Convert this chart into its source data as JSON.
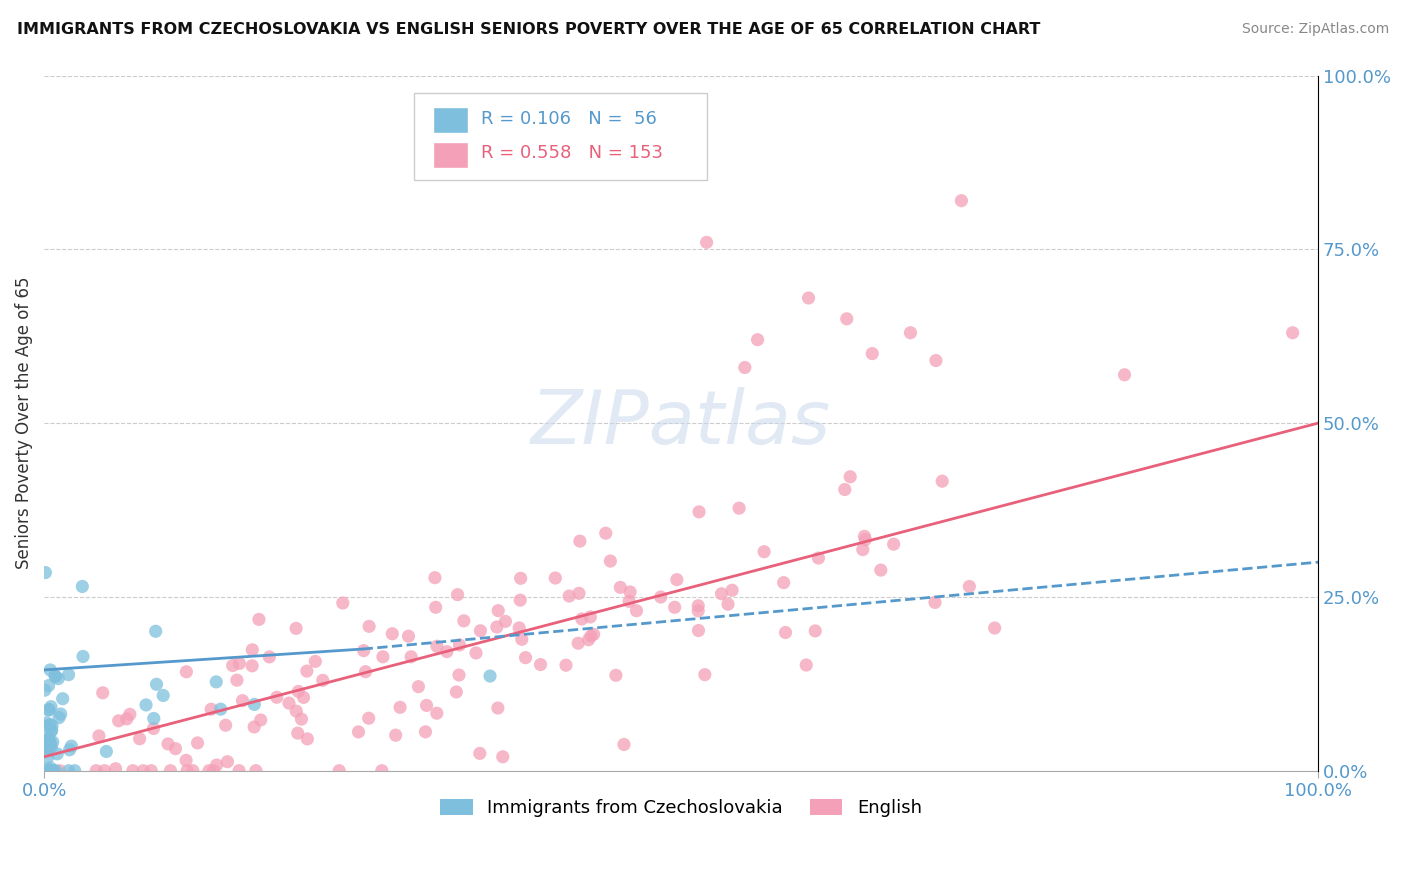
{
  "title": "IMMIGRANTS FROM CZECHOSLOVAKIA VS ENGLISH SENIORS POVERTY OVER THE AGE OF 65 CORRELATION CHART",
  "source": "Source: ZipAtlas.com",
  "ylabel": "Seniors Poverty Over the Age of 65",
  "ylabel_right_ticks": [
    "100.0%",
    "75.0%",
    "50.0%",
    "25.0%",
    "0.0%"
  ],
  "ylabel_right_values": [
    1.0,
    0.75,
    0.5,
    0.25,
    0.0
  ],
  "legend_blue_label": "Immigrants from Czechoslovakia",
  "legend_pink_label": "English",
  "legend_blue_R": "0.106",
  "legend_blue_N": "56",
  "legend_pink_R": "0.558",
  "legend_pink_N": "153",
  "blue_color": "#7dbfdd",
  "pink_color": "#f4a0b8",
  "blue_line_color": "#5599cc",
  "pink_line_color": "#e8607a",
  "xlim": [
    0.0,
    1.0
  ],
  "ylim": [
    0.0,
    1.0
  ],
  "blue_scatter_seed": 7,
  "pink_scatter_seed": 13
}
